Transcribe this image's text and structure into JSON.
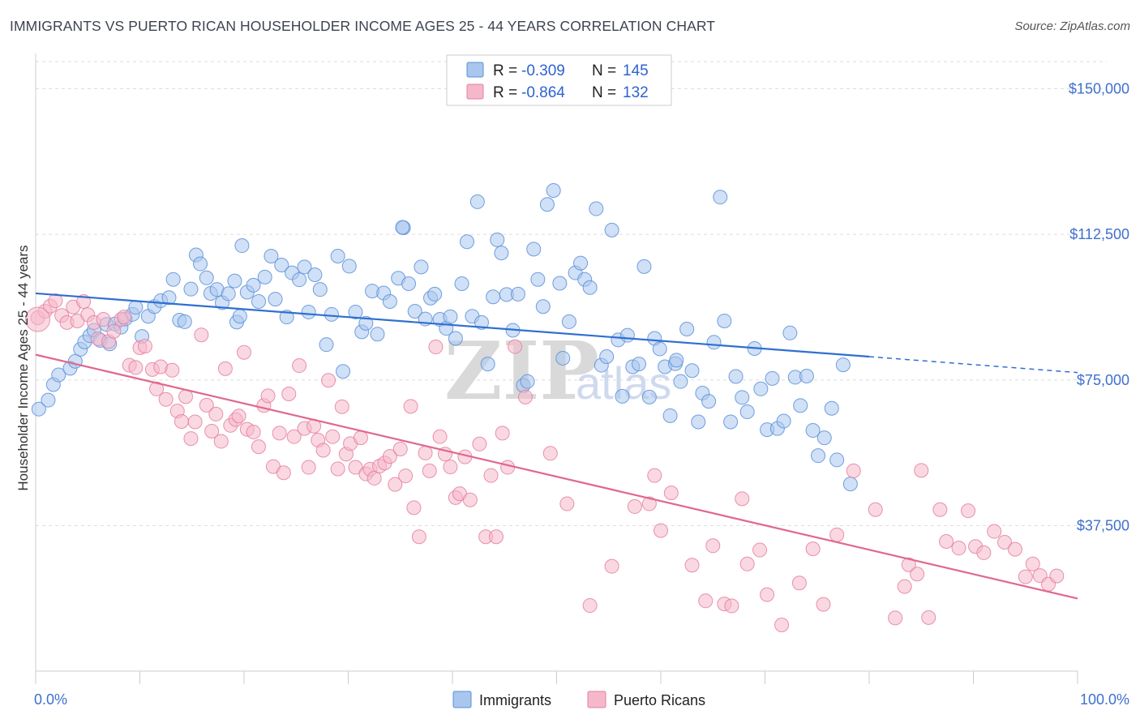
{
  "header": {
    "title": "IMMIGRANTS VS PUERTO RICAN HOUSEHOLDER INCOME AGES 25 - 44 YEARS CORRELATION CHART",
    "source": "Source: ZipAtlas.com"
  },
  "colors": {
    "immigrants_fill": "#a9c6ee",
    "immigrants_stroke": "#5b8fd8",
    "immigrants_line": "#2f6fd1",
    "puerto_fill": "#f5b8cb",
    "puerto_stroke": "#e47fa0",
    "puerto_line": "#e0688f",
    "grid": "#dddddd",
    "tick_text": "#3f6fcf"
  },
  "legend": {
    "rows": [
      {
        "r_label": "R = ",
        "r_value": "-0.309",
        "n_label": "N = ",
        "n_value": "145"
      },
      {
        "r_label": "R = ",
        "r_value": "-0.864",
        "n_label": "N = ",
        "n_value": "132"
      }
    ]
  },
  "bottom_legend": {
    "immigrants": "Immigrants",
    "puerto": "Puerto Ricans"
  },
  "watermark": {
    "zip": "ZIP",
    "atlas": "atlas"
  },
  "chart_data": {
    "type": "scatter",
    "title": "IMMIGRANTS VS PUERTO RICAN HOUSEHOLDER INCOME AGES 25 - 44 YEARS CORRELATION CHART",
    "xlabel": "",
    "ylabel": "Householder Income Ages 25 - 44 years",
    "xlim": [
      0,
      100
    ],
    "ylim": [
      0,
      157000
    ],
    "x_tick_labels": [
      "0.0%",
      "100.0%"
    ],
    "y_ticks": [
      37500,
      75000,
      112500,
      150000
    ],
    "y_tick_labels": [
      "$37,500",
      "$75,000",
      "$112,500",
      "$150,000"
    ],
    "grid": true,
    "series": [
      {
        "name": "Immigrants",
        "r": -0.309,
        "n": 145,
        "trend": {
          "x0": 0,
          "y0": 97300,
          "x1": 80,
          "y1": 81000,
          "dashed_to_x": 100,
          "dashed_to_y": 76900
        },
        "points": [
          [
            0.3,
            67500
          ],
          [
            1.2,
            69800
          ],
          [
            1.7,
            73800
          ],
          [
            2.2,
            76300
          ],
          [
            3.3,
            78000
          ],
          [
            3.8,
            79800
          ],
          [
            4.3,
            82900
          ],
          [
            4.7,
            84800
          ],
          [
            5.2,
            86400
          ],
          [
            5.6,
            87800
          ],
          [
            6.2,
            85200
          ],
          [
            6.8,
            89300
          ],
          [
            7.1,
            84300
          ],
          [
            7.6,
            89400
          ],
          [
            8.2,
            88600
          ],
          [
            8.6,
            90700
          ],
          [
            9.3,
            91900
          ],
          [
            9.6,
            93700
          ],
          [
            10.2,
            86200
          ],
          [
            10.8,
            91400
          ],
          [
            11.4,
            93900
          ],
          [
            12.0,
            95400
          ],
          [
            12.8,
            96200
          ],
          [
            13.2,
            100900
          ],
          [
            13.8,
            90400
          ],
          [
            14.3,
            90000
          ],
          [
            14.9,
            98400
          ],
          [
            15.4,
            107200
          ],
          [
            15.8,
            104900
          ],
          [
            16.4,
            101300
          ],
          [
            16.8,
            97300
          ],
          [
            17.4,
            98300
          ],
          [
            17.9,
            94900
          ],
          [
            18.5,
            97200
          ],
          [
            19.1,
            100500
          ],
          [
            19.3,
            89900
          ],
          [
            19.8,
            109600
          ],
          [
            20.3,
            97600
          ],
          [
            20.9,
            99400
          ],
          [
            21.4,
            95200
          ],
          [
            22.0,
            101500
          ],
          [
            22.6,
            106900
          ],
          [
            23.0,
            95800
          ],
          [
            23.6,
            104600
          ],
          [
            24.1,
            91200
          ],
          [
            24.6,
            102600
          ],
          [
            25.3,
            100800
          ],
          [
            25.8,
            104100
          ],
          [
            26.2,
            92500
          ],
          [
            26.8,
            102100
          ],
          [
            27.3,
            98300
          ],
          [
            27.9,
            84100
          ],
          [
            28.4,
            91900
          ],
          [
            29.0,
            106900
          ],
          [
            29.5,
            77200
          ],
          [
            30.1,
            104300
          ],
          [
            30.7,
            92500
          ],
          [
            31.3,
            87400
          ],
          [
            31.7,
            89600
          ],
          [
            32.3,
            97900
          ],
          [
            32.8,
            86800
          ],
          [
            33.4,
            97400
          ],
          [
            34.0,
            95200
          ],
          [
            34.8,
            101200
          ],
          [
            35.3,
            114200
          ],
          [
            35.8,
            99800
          ],
          [
            36.4,
            92700
          ],
          [
            37.0,
            104100
          ],
          [
            37.4,
            90700
          ],
          [
            37.9,
            96100
          ],
          [
            38.3,
            97100
          ],
          [
            38.8,
            90600
          ],
          [
            39.4,
            88300
          ],
          [
            39.8,
            91300
          ],
          [
            40.3,
            85700
          ],
          [
            40.9,
            99800
          ],
          [
            41.4,
            110600
          ],
          [
            41.9,
            91400
          ],
          [
            42.4,
            120900
          ],
          [
            42.8,
            89800
          ],
          [
            43.4,
            79100
          ],
          [
            43.9,
            96400
          ],
          [
            44.3,
            111100
          ],
          [
            44.7,
            107700
          ],
          [
            45.2,
            97000
          ],
          [
            45.8,
            87800
          ],
          [
            46.3,
            97100
          ],
          [
            46.8,
            73600
          ],
          [
            47.2,
            74600
          ],
          [
            47.8,
            108700
          ],
          [
            48.2,
            100900
          ],
          [
            48.7,
            93900
          ],
          [
            49.1,
            120200
          ],
          [
            49.7,
            123800
          ],
          [
            50.3,
            99900
          ],
          [
            50.6,
            80600
          ],
          [
            51.2,
            90000
          ],
          [
            51.8,
            102600
          ],
          [
            52.3,
            105100
          ],
          [
            52.7,
            100900
          ],
          [
            53.2,
            98800
          ],
          [
            53.8,
            119100
          ],
          [
            54.3,
            78800
          ],
          [
            54.8,
            81000
          ],
          [
            55.3,
            113600
          ],
          [
            55.9,
            85300
          ],
          [
            56.3,
            70800
          ],
          [
            56.8,
            86500
          ],
          [
            57.3,
            78400
          ],
          [
            57.9,
            79100
          ],
          [
            58.4,
            104200
          ],
          [
            58.9,
            70600
          ],
          [
            59.4,
            85700
          ],
          [
            59.9,
            83000
          ],
          [
            60.4,
            78400
          ],
          [
            60.9,
            65800
          ],
          [
            61.4,
            79200
          ],
          [
            61.9,
            74600
          ],
          [
            62.5,
            88100
          ],
          [
            63.0,
            77400
          ],
          [
            63.6,
            64200
          ],
          [
            64.0,
            71600
          ],
          [
            64.6,
            69500
          ],
          [
            65.1,
            84700
          ],
          [
            65.7,
            122100
          ],
          [
            66.1,
            90200
          ],
          [
            66.7,
            64200
          ],
          [
            67.2,
            75900
          ],
          [
            67.8,
            70500
          ],
          [
            68.3,
            66800
          ],
          [
            69.0,
            83100
          ],
          [
            69.6,
            72700
          ],
          [
            70.2,
            62200
          ],
          [
            70.7,
            75400
          ],
          [
            71.2,
            62500
          ],
          [
            71.8,
            64400
          ],
          [
            72.4,
            87100
          ],
          [
            72.9,
            75700
          ],
          [
            73.4,
            68400
          ],
          [
            74.0,
            76000
          ],
          [
            74.6,
            62000
          ],
          [
            75.1,
            55500
          ],
          [
            75.7,
            60100
          ],
          [
            76.4,
            67700
          ],
          [
            76.9,
            54400
          ],
          [
            77.5,
            78900
          ],
          [
            78.2,
            48200
          ],
          [
            35.2,
            114300
          ],
          [
            61.5,
            80100
          ],
          [
            19.6,
            91400
          ]
        ]
      },
      {
        "name": "Puerto Ricans",
        "r": -0.864,
        "n": 132,
        "trend": {
          "x0": 0,
          "y0": 81500,
          "x1": 100,
          "y1": 18700
        },
        "points": [
          [
            0.2,
            91000
          ],
          [
            0.9,
            92700
          ],
          [
            1.4,
            94000
          ],
          [
            1.9,
            95400
          ],
          [
            2.5,
            91600
          ],
          [
            3.0,
            89800
          ],
          [
            3.6,
            93800
          ],
          [
            4.0,
            90200
          ],
          [
            4.6,
            95200
          ],
          [
            5.0,
            91800
          ],
          [
            5.6,
            89800
          ],
          [
            6.0,
            85600
          ],
          [
            6.5,
            90600
          ],
          [
            7.0,
            84900
          ],
          [
            7.5,
            87500
          ],
          [
            8.2,
            90600
          ],
          [
            8.5,
            91200
          ],
          [
            9.0,
            78800
          ],
          [
            9.6,
            78200
          ],
          [
            10.0,
            83300
          ],
          [
            10.5,
            83700
          ],
          [
            11.2,
            77700
          ],
          [
            11.6,
            72700
          ],
          [
            12.0,
            78400
          ],
          [
            12.5,
            70000
          ],
          [
            13.1,
            77500
          ],
          [
            13.6,
            67000
          ],
          [
            14.0,
            64300
          ],
          [
            14.4,
            70700
          ],
          [
            14.9,
            59900
          ],
          [
            15.3,
            64200
          ],
          [
            15.9,
            86600
          ],
          [
            16.4,
            68500
          ],
          [
            16.9,
            61800
          ],
          [
            17.3,
            66200
          ],
          [
            17.8,
            59200
          ],
          [
            18.2,
            77900
          ],
          [
            18.7,
            63300
          ],
          [
            19.2,
            64800
          ],
          [
            19.5,
            65700
          ],
          [
            20.0,
            82100
          ],
          [
            20.3,
            62300
          ],
          [
            20.9,
            61600
          ],
          [
            21.4,
            57800
          ],
          [
            21.9,
            68400
          ],
          [
            22.3,
            70900
          ],
          [
            22.8,
            52700
          ],
          [
            23.4,
            61300
          ],
          [
            23.8,
            51100
          ],
          [
            24.3,
            71400
          ],
          [
            24.8,
            60400
          ],
          [
            25.3,
            78700
          ],
          [
            25.8,
            62500
          ],
          [
            26.2,
            52500
          ],
          [
            26.7,
            63100
          ],
          [
            27.1,
            59500
          ],
          [
            27.6,
            56900
          ],
          [
            28.1,
            74900
          ],
          [
            28.5,
            60400
          ],
          [
            29.0,
            52100
          ],
          [
            29.4,
            68100
          ],
          [
            29.8,
            55900
          ],
          [
            30.2,
            58600
          ],
          [
            30.7,
            52500
          ],
          [
            31.2,
            60100
          ],
          [
            31.7,
            50800
          ],
          [
            32.1,
            52000
          ],
          [
            32.5,
            49700
          ],
          [
            33.0,
            52800
          ],
          [
            33.5,
            53600
          ],
          [
            34.0,
            55300
          ],
          [
            34.5,
            48100
          ],
          [
            35.0,
            57200
          ],
          [
            35.5,
            50300
          ],
          [
            36.0,
            68200
          ],
          [
            36.3,
            42100
          ],
          [
            36.8,
            34600
          ],
          [
            37.4,
            56200
          ],
          [
            37.8,
            51600
          ],
          [
            38.4,
            83500
          ],
          [
            38.8,
            60400
          ],
          [
            39.3,
            55900
          ],
          [
            39.8,
            52600
          ],
          [
            40.3,
            44700
          ],
          [
            40.7,
            45700
          ],
          [
            41.2,
            55200
          ],
          [
            41.7,
            44100
          ],
          [
            42.6,
            58500
          ],
          [
            43.2,
            34600
          ],
          [
            43.7,
            50400
          ],
          [
            44.2,
            34600
          ],
          [
            44.8,
            61300
          ],
          [
            45.3,
            52500
          ],
          [
            46.0,
            83600
          ],
          [
            47.0,
            70600
          ],
          [
            49.4,
            56100
          ],
          [
            51.0,
            43100
          ],
          [
            53.2,
            16900
          ],
          [
            55.3,
            27000
          ],
          [
            57.5,
            42400
          ],
          [
            58.9,
            43100
          ],
          [
            59.4,
            50400
          ],
          [
            60.0,
            36200
          ],
          [
            61.0,
            45900
          ],
          [
            63.0,
            27300
          ],
          [
            64.3,
            18100
          ],
          [
            65.0,
            32300
          ],
          [
            66.1,
            17300
          ],
          [
            66.8,
            16800
          ],
          [
            67.8,
            44400
          ],
          [
            68.3,
            27600
          ],
          [
            69.5,
            31200
          ],
          [
            70.2,
            19700
          ],
          [
            71.6,
            11900
          ],
          [
            73.3,
            22700
          ],
          [
            74.6,
            31500
          ],
          [
            75.6,
            17200
          ],
          [
            76.9,
            35100
          ],
          [
            78.5,
            51600
          ],
          [
            80.6,
            41600
          ],
          [
            82.5,
            13700
          ],
          [
            83.4,
            21800
          ],
          [
            83.8,
            27400
          ],
          [
            84.6,
            25000
          ],
          [
            85.0,
            51700
          ],
          [
            85.7,
            13800
          ],
          [
            86.8,
            41600
          ],
          [
            87.4,
            33400
          ],
          [
            88.6,
            31700
          ],
          [
            89.5,
            41300
          ],
          [
            90.2,
            32100
          ],
          [
            91.0,
            30500
          ],
          [
            92.0,
            36000
          ],
          [
            93.0,
            33200
          ],
          [
            94.0,
            31400
          ],
          [
            95.0,
            24300
          ],
          [
            95.7,
            27600
          ],
          [
            96.4,
            24600
          ],
          [
            97.2,
            22400
          ],
          [
            98.0,
            24500
          ]
        ]
      }
    ]
  }
}
